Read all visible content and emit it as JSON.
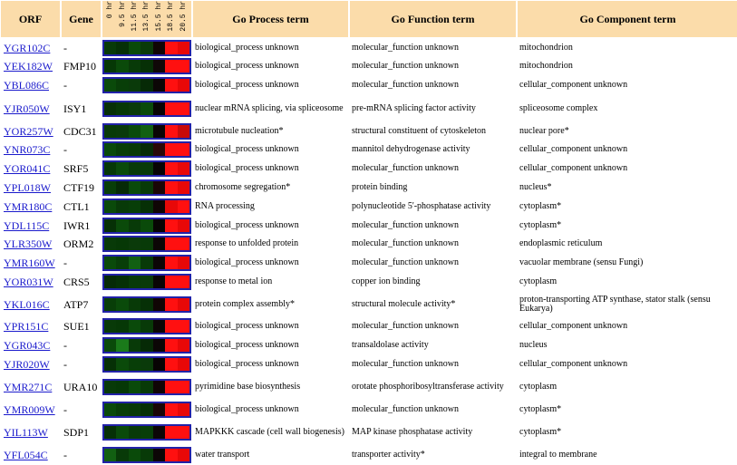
{
  "headers": {
    "orf": "ORF",
    "gene": "Gene",
    "time_labels": [
      "0 hr",
      "9.5 hr",
      "11.5 hr",
      "13.5 hr",
      "15.5 hr",
      "18.5 hr",
      "20.5 hr"
    ],
    "process": "Go Process term",
    "function": "Go Function term",
    "component": "Go Component term"
  },
  "rows": [
    {
      "orf": "YGR102C",
      "gene": "-",
      "heat": [
        "#083a08",
        "#063006",
        "#0a4a0a",
        "#0a3a0a",
        "#100505",
        "#ff1010",
        "#e80808"
      ],
      "process": "biological_process unknown",
      "function": "molecular_function unknown",
      "component": "mitochondrion"
    },
    {
      "orf": "YEK182W",
      "gene": "FMP10",
      "heat": [
        "#063806",
        "#0a4a0a",
        "#083a08",
        "#063006",
        "#100808",
        "#ff1010",
        "#ff1010"
      ],
      "process": "biological_process unknown",
      "function": "molecular_function unknown",
      "component": "mitochondrion"
    },
    {
      "orf": "YBL086C",
      "gene": "-",
      "heat": [
        "#0a4a0a",
        "#083e08",
        "#0a3a0a",
        "#062a06",
        "#0c0606",
        "#ff1010",
        "#e80808"
      ],
      "process": "biological_process unknown",
      "function": "molecular_function unknown",
      "component": "cellular_component unknown"
    },
    {
      "orf": "YJR050W",
      "gene": "ISY1",
      "heat": [
        "#063006",
        "#063806",
        "#0a3a0a",
        "#0a4a0a",
        "#080404",
        "#ff1010",
        "#ff1010"
      ],
      "process": "nuclear mRNA splicing, via spliceosome",
      "function": "pre-mRNA splicing factor activity",
      "component": "spliceosome complex"
    },
    {
      "orf": "YOR257W",
      "gene": "CDC31",
      "heat": [
        "#083a08",
        "#0a3a0a",
        "#0a4a0a",
        "#126012",
        "#0a0505",
        "#ff1010",
        "#c80a0a"
      ],
      "process": "microtubule nucleation*",
      "function": "structural constituent of cytoskeleton",
      "component": "nuclear pore*"
    },
    {
      "orf": "YNR073C",
      "gene": "-",
      "heat": [
        "#0a4a0a",
        "#083e08",
        "#083a08",
        "#062a06",
        "#2a0808",
        "#ff1010",
        "#ff1010"
      ],
      "process": "biological_process unknown",
      "function": "mannitol dehydrogenase activity",
      "component": "cellular_component unknown"
    },
    {
      "orf": "YOR041C",
      "gene": "SRF5",
      "heat": [
        "#063806",
        "#0a4a0a",
        "#083a08",
        "#083a08",
        "#080404",
        "#ff1010",
        "#e80808"
      ],
      "process": "biological_process unknown",
      "function": "molecular_function unknown",
      "component": "cellular_component unknown"
    },
    {
      "orf": "YPL018W",
      "gene": "CTF19",
      "heat": [
        "#083e08",
        "#062a06",
        "#0a4a0a",
        "#083a08",
        "#1a0606",
        "#ff1010",
        "#e80808"
      ],
      "process": "chromosome segregation*",
      "function": "protein binding",
      "component": "nucleus*"
    },
    {
      "orf": "YMR180C",
      "gene": "CTL1",
      "heat": [
        "#0a4a0a",
        "#083a08",
        "#083e08",
        "#063006",
        "#100505",
        "#e80808",
        "#ff1010"
      ],
      "process": "RNA processing",
      "function": "polynucleotide 5'-phosphatase activity",
      "component": "cytoplasm*"
    },
    {
      "orf": "YDL115C",
      "gene": "IWR1",
      "heat": [
        "#063006",
        "#0a4a0a",
        "#083a08",
        "#0a4a0a",
        "#080404",
        "#ff1010",
        "#e80808"
      ],
      "process": "biological_process unknown",
      "function": "molecular_function unknown",
      "component": "cytoplasm*"
    },
    {
      "orf": "YLR350W",
      "gene": "ORM2",
      "heat": [
        "#083a08",
        "#063806",
        "#0a3a0a",
        "#083a08",
        "#0c0606",
        "#ff1010",
        "#ff1010"
      ],
      "process": "response to unfolded protein",
      "function": "molecular_function unknown",
      "component": "endoplasmic reticulum"
    },
    {
      "orf": "YMR160W",
      "gene": "-",
      "heat": [
        "#0a4a0a",
        "#083e08",
        "#126012",
        "#083a08",
        "#0c0606",
        "#ff1010",
        "#e80808"
      ],
      "process": "biological_process unknown",
      "function": "molecular_function unknown",
      "component": "vacuolar membrane (sensu Fungi)"
    },
    {
      "orf": "YOR031W",
      "gene": "CRS5",
      "heat": [
        "#062a06",
        "#063006",
        "#083a08",
        "#0a3a0a",
        "#0a0505",
        "#ff1010",
        "#ff1010"
      ],
      "process": "response to metal ion",
      "function": "copper ion binding",
      "component": "cytoplasm"
    },
    {
      "orf": "YKL016C",
      "gene": "ATP7",
      "heat": [
        "#083e08",
        "#0a4a0a",
        "#083a08",
        "#063006",
        "#100505",
        "#ff1010",
        "#e80808"
      ],
      "process": "protein complex assembly*",
      "function": "structural molecule activity*",
      "component": "proton-transporting ATP synthase, stator stalk (sensu Eukarya)"
    },
    {
      "orf": "YPR151C",
      "gene": "SUE1",
      "heat": [
        "#083a08",
        "#063806",
        "#0a4a0a",
        "#083a08",
        "#0c0606",
        "#ff1010",
        "#ff1010"
      ],
      "process": "biological_process unknown",
      "function": "molecular_function unknown",
      "component": "cellular_component unknown"
    },
    {
      "orf": "YGR043C",
      "gene": "-",
      "heat": [
        "#0a4a0a",
        "#1a7a1a",
        "#083a08",
        "#062a06",
        "#0c0606",
        "#ff1010",
        "#e80808"
      ],
      "process": "biological_process unknown",
      "function": "transaldolase activity",
      "component": "nucleus"
    },
    {
      "orf": "YJR020W",
      "gene": "-",
      "heat": [
        "#063006",
        "#0a4a0a",
        "#083e08",
        "#0a3a0a",
        "#080404",
        "#ff1010",
        "#e80808"
      ],
      "process": "biological_process unknown",
      "function": "molecular_function unknown",
      "component": "cellular_component unknown"
    },
    {
      "orf": "YMR271C",
      "gene": "URA10",
      "heat": [
        "#083a08",
        "#063806",
        "#0a4a0a",
        "#083a08",
        "#100505",
        "#ff1010",
        "#ff1010"
      ],
      "process": "pyrimidine base biosynthesis",
      "function": "orotate phosphoribosyltransferase activity",
      "component": "cytoplasm"
    },
    {
      "orf": "YMR009W",
      "gene": "-",
      "heat": [
        "#0a4a0a",
        "#083e08",
        "#083a08",
        "#063006",
        "#1a0606",
        "#ff1010",
        "#e80808"
      ],
      "process": "biological_process unknown",
      "function": "molecular_function unknown",
      "component": "cytoplasm*"
    },
    {
      "orf": "YIL113W",
      "gene": "SDP1",
      "heat": [
        "#063006",
        "#0a4a0a",
        "#083a08",
        "#083e08",
        "#0c0606",
        "#ff1010",
        "#ff1010"
      ],
      "process": "MAPKKK cascade (cell wall biogenesis)",
      "function": "MAP kinase phosphatase activity",
      "component": "cytoplasm*"
    },
    {
      "orf": "YFL054C",
      "gene": "-",
      "heat": [
        "#126012",
        "#083a08",
        "#0a4a0a",
        "#083a08",
        "#0c0606",
        "#ff1010",
        "#e80808"
      ],
      "process": "water transport",
      "function": "transporter activity*",
      "component": "integral to membrane"
    }
  ]
}
